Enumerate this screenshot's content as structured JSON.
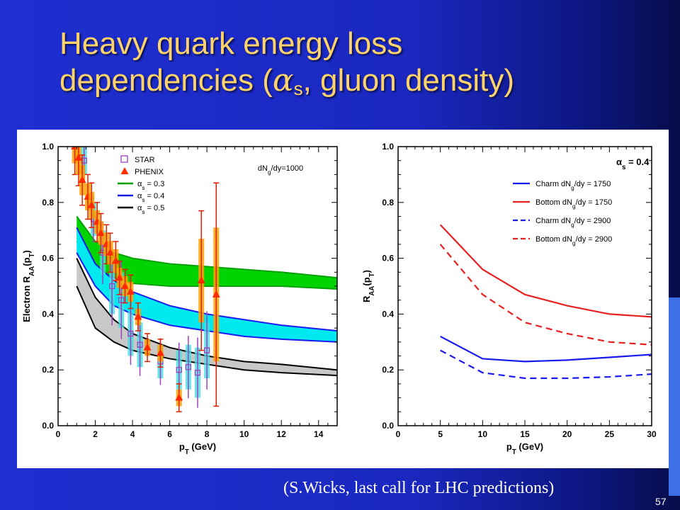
{
  "slide": {
    "title_line1": "Heavy quark energy loss",
    "title_line2_pre": "dependencies (",
    "title_alpha": "α",
    "title_sub": "s",
    "title_line2_post": ", gluon density)",
    "caption": "(S.Wicks, last call for LHC predictions)",
    "page_number": "57",
    "colors": {
      "background": "#1e2fd0",
      "title": "#ffd36a",
      "caption": "#ffffff"
    }
  },
  "chart_data": [
    {
      "type": "area",
      "xlabel": "p_T (GeV)",
      "ylabel": "Electron R_AA(p_T)",
      "xlim": [
        0,
        15
      ],
      "ylim": [
        0,
        1.0
      ],
      "xticks": [
        0,
        2,
        4,
        6,
        8,
        10,
        12,
        14
      ],
      "yticks": [
        "0.0",
        "0.2",
        "0.4",
        "0.6",
        "0.8",
        "1.0"
      ],
      "annotation": "dN_g/dy=1000",
      "legend_position": "top-center",
      "bands": [
        {
          "name": "α_s = 0.3",
          "color": "#00d400",
          "x": [
            1,
            2,
            3,
            4,
            6,
            8,
            10,
            12,
            15
          ],
          "upper": [
            0.75,
            0.66,
            0.62,
            0.6,
            0.58,
            0.57,
            0.56,
            0.55,
            0.53
          ],
          "lower": [
            0.66,
            0.57,
            0.53,
            0.51,
            0.5,
            0.5,
            0.5,
            0.5,
            0.49
          ]
        },
        {
          "name": "α_s = 0.4",
          "color": "#00e8f0",
          "x": [
            1,
            2,
            3,
            4,
            6,
            8,
            10,
            12,
            15
          ],
          "upper": [
            0.71,
            0.58,
            0.52,
            0.48,
            0.43,
            0.4,
            0.38,
            0.36,
            0.34
          ],
          "lower": [
            0.62,
            0.5,
            0.43,
            0.4,
            0.36,
            0.34,
            0.32,
            0.31,
            0.3
          ]
        },
        {
          "name": "α_s = 0.5",
          "color": "#c8c8c8",
          "x": [
            1,
            2,
            3,
            4,
            6,
            8,
            10,
            12,
            15
          ],
          "upper": [
            0.6,
            0.46,
            0.38,
            0.33,
            0.28,
            0.25,
            0.23,
            0.22,
            0.2
          ],
          "lower": [
            0.5,
            0.35,
            0.3,
            0.27,
            0.24,
            0.22,
            0.2,
            0.19,
            0.18
          ]
        }
      ],
      "series": [
        {
          "name": "STAR",
          "marker": "open-square",
          "color": "#a040c0",
          "points": [
            [
              1.4,
              0.95
            ],
            [
              1.9,
              0.74
            ],
            [
              2.4,
              0.62
            ],
            [
              2.9,
              0.5
            ],
            [
              3.4,
              0.45
            ],
            [
              3.9,
              0.33
            ],
            [
              4.4,
              0.29
            ],
            [
              5.5,
              0.23
            ],
            [
              6.5,
              0.2
            ],
            [
              7.0,
              0.21
            ],
            [
              7.5,
              0.19
            ],
            [
              8.0,
              0.27
            ]
          ],
          "errors": [
            0.05,
            0.06,
            0.08,
            0.1,
            0.1,
            0.08,
            0.08,
            0.06,
            0.07,
            0.08,
            0.09,
            0.1
          ]
        },
        {
          "name": "PHENIX",
          "marker": "filled-triangle",
          "color": "#ff2a00",
          "points": [
            [
              0.9,
              1.0
            ],
            [
              1.1,
              0.96
            ],
            [
              1.3,
              0.88
            ],
            [
              1.6,
              0.82
            ],
            [
              1.8,
              0.79
            ],
            [
              2.1,
              0.73
            ],
            [
              2.3,
              0.69
            ],
            [
              2.6,
              0.65
            ],
            [
              2.8,
              0.62
            ],
            [
              3.1,
              0.59
            ],
            [
              3.3,
              0.53
            ],
            [
              3.6,
              0.5
            ],
            [
              3.9,
              0.48
            ],
            [
              4.3,
              0.39
            ],
            [
              4.8,
              0.28
            ],
            [
              5.5,
              0.26
            ],
            [
              6.5,
              0.1
            ],
            [
              7.7,
              0.52
            ],
            [
              8.5,
              0.47
            ]
          ],
          "errors": [
            0.1,
            0.1,
            0.09,
            0.08,
            0.08,
            0.07,
            0.07,
            0.07,
            0.07,
            0.07,
            0.06,
            0.06,
            0.06,
            0.05,
            0.05,
            0.05,
            0.05,
            0.25,
            0.4
          ]
        }
      ],
      "legend": [
        "STAR",
        "PHENIX",
        "α_s = 0.3",
        "α_s = 0.4",
        "α_s = 0.5"
      ]
    },
    {
      "type": "line",
      "xlabel": "p_T (GeV)",
      "ylabel": "R_AA(p_T)",
      "xlim": [
        0,
        30
      ],
      "ylim": [
        0,
        1.0
      ],
      "xticks": [
        0,
        5,
        10,
        15,
        20,
        25,
        30
      ],
      "yticks": [
        "0.0",
        "0.2",
        "0.4",
        "0.6",
        "0.8",
        "1.0"
      ],
      "annotation": "α_s = 0.4",
      "legend_position": "top-right",
      "x": [
        5,
        10,
        15,
        20,
        25,
        30
      ],
      "series": [
        {
          "name": "Charm dN_g/dy = 1750",
          "color": "#1a1af0",
          "dash": false,
          "values": [
            0.32,
            0.24,
            0.23,
            0.235,
            0.245,
            0.255
          ]
        },
        {
          "name": "Bottom dN_g/dy = 1750",
          "color": "#e82020",
          "dash": false,
          "values": [
            0.72,
            0.56,
            0.47,
            0.43,
            0.4,
            0.39
          ]
        },
        {
          "name": "Charm dN_g/dy = 2900",
          "color": "#1a1af0",
          "dash": true,
          "values": [
            0.27,
            0.19,
            0.17,
            0.17,
            0.175,
            0.185
          ]
        },
        {
          "name": "Bottom dN_g/dy = 2900",
          "color": "#e82020",
          "dash": true,
          "values": [
            0.65,
            0.47,
            0.37,
            0.33,
            0.3,
            0.29
          ]
        }
      ]
    }
  ]
}
